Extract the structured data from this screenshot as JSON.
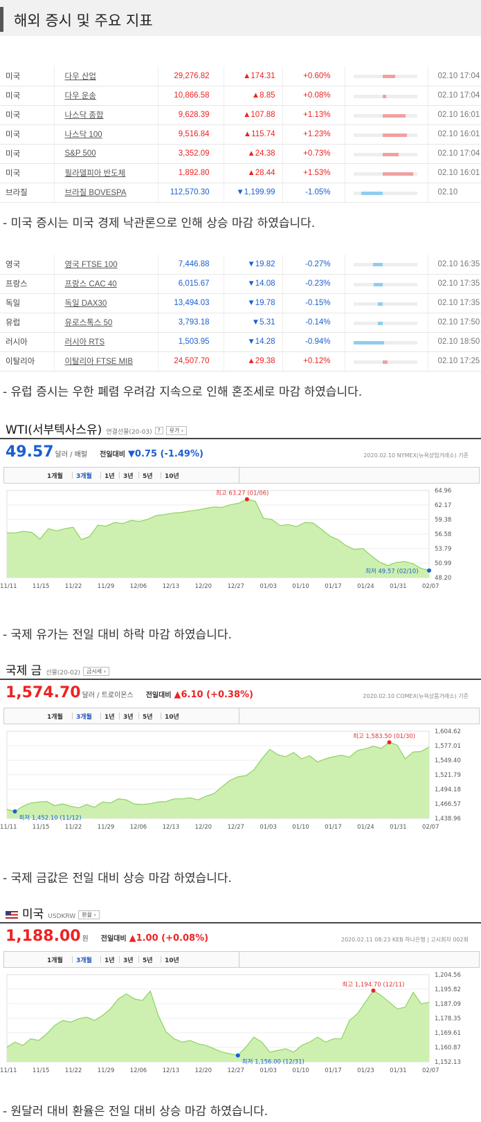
{
  "header": {
    "title": "해외 증시 및 주요 지표"
  },
  "table_us": [
    {
      "country": "미국",
      "name": "다우 산업",
      "value": "29,276.82",
      "change": "▲174.31",
      "pct": "+0.60%",
      "dir": "up",
      "bar": 0.2,
      "date": "02.10 17:04"
    },
    {
      "country": "미국",
      "name": "다우 운송",
      "value": "10,866.58",
      "change": "▲8.85",
      "pct": "+0.08%",
      "dir": "up",
      "bar": 0.05,
      "date": "02.10 17:04"
    },
    {
      "country": "미국",
      "name": "나스닥 종합",
      "value": "9,628.39",
      "change": "▲107.88",
      "pct": "+1.13%",
      "dir": "up",
      "bar": 0.36,
      "date": "02.10 16:01"
    },
    {
      "country": "미국",
      "name": "나스닥 100",
      "value": "9,516.84",
      "change": "▲115.74",
      "pct": "+1.23%",
      "dir": "up",
      "bar": 0.38,
      "date": "02.10 16:01"
    },
    {
      "country": "미국",
      "name": "S&P 500",
      "value": "3,352.09",
      "change": "▲24.38",
      "pct": "+0.73%",
      "dir": "up",
      "bar": 0.25,
      "date": "02.10 17:04"
    },
    {
      "country": "미국",
      "name": "필라델피아 반도체",
      "value": "1,892.80",
      "change": "▲28.44",
      "pct": "+1.53%",
      "dir": "up",
      "bar": 0.48,
      "date": "02.10 16:01"
    },
    {
      "country": "브라질",
      "name": "브라질 BOVESPA",
      "value": "112,570.30",
      "change": "▼1,199.99",
      "pct": "-1.05%",
      "dir": "dn",
      "bar": 0.34,
      "date": "02.10"
    }
  ],
  "note_us": "- 미국 증시는 미국 경제 낙관론으로 인해 상승 마감 하였습니다.",
  "table_eu": [
    {
      "country": "영국",
      "name": "영국 FTSE 100",
      "value": "7,446.88",
      "change": "▼19.82",
      "pct": "-0.27%",
      "dir": "dn",
      "bar": 0.15,
      "date": "02.10 16:35"
    },
    {
      "country": "프랑스",
      "name": "프랑스 CAC 40",
      "value": "6,015.67",
      "change": "▼14.08",
      "pct": "-0.23%",
      "dir": "dn",
      "bar": 0.14,
      "date": "02.10 17:35"
    },
    {
      "country": "독일",
      "name": "독일 DAX30",
      "value": "13,494.03",
      "change": "▼19.78",
      "pct": "-0.15%",
      "dir": "dn",
      "bar": 0.08,
      "date": "02.10 17:35"
    },
    {
      "country": "유럽",
      "name": "유로스톡스 50",
      "value": "3,793.18",
      "change": "▼5.31",
      "pct": "-0.14%",
      "dir": "dn",
      "bar": 0.08,
      "date": "02.10 17:50"
    },
    {
      "country": "러시아",
      "name": "러시아 RTS",
      "value": "1,503.95",
      "change": "▼14.28",
      "pct": "-0.94%",
      "dir": "dn",
      "bar": 0.48,
      "date": "02.10 18:50"
    },
    {
      "country": "이탈리아",
      "name": "이탈리아 FTSE MIB",
      "value": "24,507.70",
      "change": "▲29.38",
      "pct": "+0.12%",
      "dir": "up",
      "bar": 0.08,
      "date": "02.10 17:25"
    }
  ],
  "note_eu": "- 유럽 증시는 우한 폐렴 우려감 지속으로 인해 혼조세로 마감 하였습니다.",
  "charts": [
    {
      "title": "WTI(서부텍사스유)",
      "sub": "연결선물(20-03)",
      "btn": "유가",
      "price": "49.57",
      "unit": "달러 / 배럴",
      "cmp_label": "전일대비",
      "change": "▼0.75 (-1.49%)",
      "dir": "dn",
      "source": "2020.02.10  NYMEX(뉴욕상업거래소) 기준",
      "tabs": [
        "1개월",
        "3개월",
        "1년",
        "3년",
        "5년",
        "10년"
      ],
      "ylabels": [
        "64.96",
        "62.17",
        "59.38",
        "56.58",
        "53.79",
        "50.99",
        "48.20"
      ],
      "xlabels": [
        "11/11",
        "11/15",
        "11/22",
        "11/29",
        "12/06",
        "12/13",
        "12/20",
        "12/27",
        "01/03",
        "01/10",
        "01/17",
        "01/24",
        "01/31",
        "02/07"
      ],
      "high_label": "최고  63.27 (01/06)",
      "low_label": "최저  49.57 (02/10)",
      "chart_data": {
        "type": "area",
        "ylim": [
          48.2,
          64.96
        ],
        "values": [
          56.8,
          56.8,
          57.1,
          56.9,
          55.6,
          57.6,
          57.2,
          57.6,
          57.9,
          55.5,
          56.1,
          58.3,
          58.1,
          58.8,
          58.6,
          59.2,
          59.0,
          59.4,
          60.1,
          60.3,
          60.6,
          60.7,
          61.0,
          61.2,
          61.5,
          61.8,
          61.7,
          62.2,
          62.5,
          63.27,
          62.9,
          59.6,
          59.4,
          58.2,
          58.4,
          58.0,
          58.8,
          58.7,
          57.5,
          56.2,
          55.5,
          54.3,
          53.6,
          53.8,
          52.4,
          51.2,
          50.5,
          51.1,
          51.3,
          50.9,
          50.0,
          49.57
        ]
      }
    },
    {
      "title": "국제 금",
      "sub": "선물(20-02)",
      "btn": "금시세",
      "price": "1,574.70",
      "unit": "달러 / 트로이온스",
      "cmp_label": "전일대비",
      "change": "▲6.10 (+0.38%)",
      "dir": "up",
      "source": "2020.02.10  COMEX(뉴욕상품거래소) 기준",
      "tabs": [
        "1개월",
        "3개월",
        "1년",
        "3년",
        "5년",
        "10년"
      ],
      "ylabels": [
        "1,604.62",
        "1,577.01",
        "1,549.40",
        "1,521.79",
        "1,494.18",
        "1,466.57",
        "1,438.96"
      ],
      "xlabels": [
        "11/11",
        "11/15",
        "11/22",
        "11/29",
        "12/06",
        "12/13",
        "12/20",
        "12/27",
        "01/03",
        "01/10",
        "01/17",
        "01/24",
        "01/31",
        "02/07"
      ],
      "high_label": "최고  1,583.50 (01/30)",
      "low_label": "최저  1,452.10 (11/12)",
      "chart_data": {
        "type": "area",
        "ylim": [
          1438.96,
          1604.62
        ],
        "values": [
          1456,
          1452.1,
          1462,
          1468,
          1470,
          1471,
          1463,
          1466,
          1462,
          1459,
          1465,
          1460,
          1470,
          1468,
          1476,
          1474,
          1466,
          1465,
          1467,
          1470,
          1471,
          1476,
          1476,
          1478,
          1474,
          1481,
          1486,
          1499,
          1511,
          1518,
          1520,
          1531,
          1552,
          1570,
          1560,
          1556,
          1564,
          1552,
          1558,
          1546,
          1552,
          1556,
          1559,
          1555,
          1568,
          1571,
          1576,
          1572,
          1583.5,
          1578,
          1552,
          1565,
          1566,
          1574.7
        ]
      }
    },
    {
      "title": "미국",
      "sub": "USDKRW",
      "btn": "환율",
      "price": "1,188.00",
      "unit": "원",
      "cmp_label": "전일대비",
      "change": "▲1.00 (+0.08%)",
      "dir": "up",
      "source": "2020.02.11 08:23  KEB 하나은행  |  고시회차 002회",
      "tabs": [
        "1개월",
        "3개월",
        "1년",
        "3년",
        "5년",
        "10년"
      ],
      "ylabels": [
        "1,204.56",
        "1,195.82",
        "1,187.09",
        "1,178.35",
        "1,169.61",
        "1,160.87",
        "1,152.13"
      ],
      "xlabels": [
        "11/11",
        "11/15",
        "11/22",
        "11/29",
        "12/06",
        "12/13",
        "12/20",
        "12/27",
        "01/03",
        "01/10",
        "01/17",
        "01/23",
        "01/31",
        "02/07"
      ],
      "high_label": "최고  1,194.70 (12/11)",
      "low_label": "최저  1,156.00 (12/31)",
      "chart_data": {
        "type": "area",
        "ylim": [
          1152.13,
          1204.56
        ],
        "values": [
          1161,
          1164,
          1162,
          1166,
          1165,
          1169,
          1174,
          1177,
          1176,
          1178,
          1179,
          1177,
          1180,
          1184,
          1190,
          1193,
          1190,
          1189,
          1194.7,
          1180,
          1170,
          1166,
          1164,
          1165,
          1163,
          1162,
          1160,
          1158,
          1157,
          1156,
          1161,
          1167,
          1164,
          1158,
          1159,
          1160,
          1158,
          1162,
          1164,
          1167,
          1164,
          1166,
          1166,
          1177,
          1181,
          1188,
          1195,
          1192,
          1188,
          1184,
          1185,
          1194,
          1187,
          1188
        ]
      }
    }
  ],
  "note_oil": "- 국제 유가는 전일 대비 하락 마감 하였습니다.",
  "note_gold": "- 국제 금값은 전일 대비 상승 마감 하였습니다.",
  "note_fx": "- 원달러 대비 환율은 전일 대비 상승 마감 하였습니다."
}
